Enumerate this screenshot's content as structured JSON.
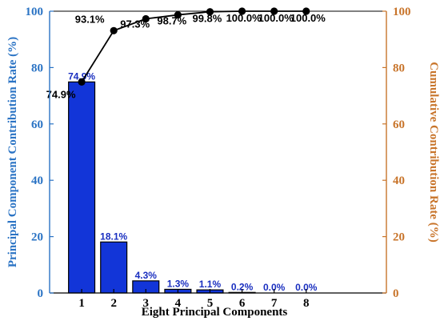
{
  "chart_data": {
    "type": "bar",
    "categories": [
      "1",
      "2",
      "3",
      "4",
      "5",
      "6",
      "7",
      "8"
    ],
    "series": [
      {
        "values": [
          74.9,
          18.1,
          4.3,
          1.3,
          1.1,
          0.2,
          0.0,
          0.0
        ],
        "labels": [
          "74.9%",
          "18.1%",
          "4.3%",
          "1.3%",
          "1.1%",
          "0.2%",
          "0.0%",
          "0.0%"
        ],
        "axis": "left",
        "color": "#1235d8"
      },
      {
        "type": "line",
        "values": [
          74.9,
          93.1,
          97.3,
          98.7,
          99.8,
          100.0,
          100.0,
          100.0
        ],
        "labels": [
          "74.9%",
          "93.1%",
          "97.3%",
          "98.7%",
          "99.8%",
          "100.0%",
          "100.0%",
          "100.0%"
        ],
        "axis": "right",
        "color": "#000000"
      }
    ],
    "xlabel": "Eight Principal Components",
    "ylabel": "Principal Component Contribution Rate (%)",
    "ylabel_right": "Cumulative Contribution Rate (%)",
    "ylim": [
      0,
      100
    ],
    "ylim_right": [
      0,
      100
    ],
    "yticks": [
      "0",
      "20",
      "40",
      "60",
      "80",
      "100"
    ],
    "yticks_right": [
      "0",
      "20",
      "40",
      "60",
      "80",
      "100"
    ],
    "grid": false,
    "colors": {
      "left_axis": "#2a73c4",
      "right_axis": "#c8742a",
      "bar_label": "#1a2fc0"
    }
  }
}
